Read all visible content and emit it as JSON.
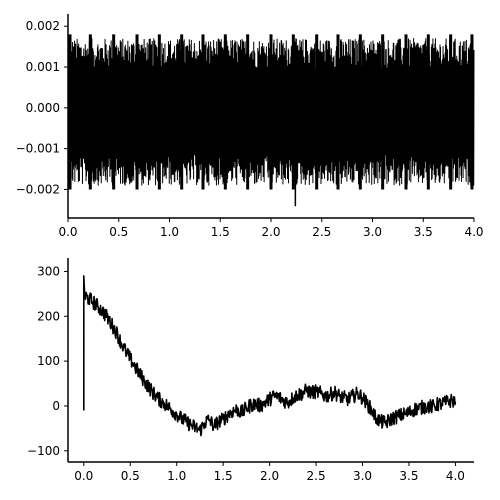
{
  "colors": {
    "line": "#000000",
    "background": "#ffffff"
  },
  "chart_data": [
    {
      "type": "line",
      "title": "",
      "xlabel": "",
      "ylabel": "",
      "xlim": [
        0.0,
        4.0
      ],
      "ylim": [
        -0.0027,
        0.0023
      ],
      "grid": false,
      "x_ticks": [
        0.0,
        0.5,
        1.0,
        1.5,
        2.0,
        2.5,
        3.0,
        3.5,
        4.0
      ],
      "x_tick_labels": [
        "0.0",
        "0.5",
        "1.0",
        "1.5",
        "2.0",
        "2.5",
        "3.0",
        "3.5",
        "4.0"
      ],
      "y_ticks": [
        -0.002,
        -0.001,
        0.0,
        0.001,
        0.002
      ],
      "y_tick_labels": [
        "−0.002",
        "−0.001",
        "0.000",
        "0.001",
        "0.002"
      ],
      "signal": {
        "description": "dense oscillating trace between approx -0.002 and 0.0018 with periodic bursts",
        "burst_times": [
          0.02,
          0.22,
          0.45,
          0.68,
          0.9,
          1.12,
          1.33,
          1.55,
          1.77,
          2.0,
          2.22,
          2.45,
          2.66,
          2.88,
          3.1,
          3.33,
          3.55,
          3.77,
          3.98
        ],
        "upper_envelope": 0.0017,
        "lower_envelope": -0.0019,
        "minimum": {
          "x": 2.24,
          "y": -0.0024
        }
      }
    },
    {
      "type": "line",
      "title": "",
      "xlabel": "",
      "ylabel": "",
      "xlim": [
        -0.17,
        4.2
      ],
      "ylim": [
        -125,
        330
      ],
      "grid": false,
      "x_ticks": [
        0.0,
        0.5,
        1.0,
        1.5,
        2.0,
        2.5,
        3.0,
        3.5,
        4.0
      ],
      "x_tick_labels": [
        "0.0",
        "0.5",
        "1.0",
        "1.5",
        "2.0",
        "2.5",
        "3.0",
        "3.5",
        "4.0"
      ],
      "y_ticks": [
        -100,
        0,
        100,
        200,
        300
      ],
      "y_tick_labels": [
        "−100",
        "0",
        "100",
        "200",
        "300"
      ],
      "series": [
        {
          "x": [
            0.0,
            0.0,
            0.01,
            0.05,
            0.1,
            0.15,
            0.2,
            0.25,
            0.3,
            0.35,
            0.4,
            0.45,
            0.5,
            0.55,
            0.6,
            0.65,
            0.7,
            0.75,
            0.8,
            0.85,
            0.9,
            0.95,
            1.0,
            1.05,
            1.1,
            1.15,
            1.2,
            1.25,
            1.3,
            1.35,
            1.4,
            1.45,
            1.5,
            1.55,
            1.6,
            1.65,
            1.7,
            1.75,
            1.8,
            1.85,
            1.9,
            1.95,
            2.0,
            2.05,
            2.1,
            2.15,
            2.2,
            2.25,
            2.3,
            2.35,
            2.4,
            2.45,
            2.5,
            2.55,
            2.6,
            2.65,
            2.7,
            2.75,
            2.8,
            2.85,
            2.9,
            2.95,
            3.0,
            3.05,
            3.1,
            3.15,
            3.2,
            3.25,
            3.3,
            3.35,
            3.4,
            3.45,
            3.5,
            3.55,
            3.6,
            3.65,
            3.7,
            3.75,
            3.8,
            3.85,
            3.9,
            3.95,
            4.0
          ],
          "values": [
            -10,
            290,
            245,
            240,
            232,
            222,
            212,
            198,
            182,
            165,
            142,
            122,
            105,
            88,
            72,
            56,
            42,
            28,
            17,
            8,
            0,
            -10,
            -18,
            -28,
            -35,
            -42,
            -48,
            -55,
            -38,
            -30,
            -45,
            -35,
            -30,
            -20,
            -12,
            -8,
            -15,
            -5,
            2,
            5,
            0,
            8,
            15,
            22,
            20,
            12,
            8,
            18,
            25,
            28,
            35,
            30,
            32,
            28,
            22,
            25,
            30,
            22,
            18,
            15,
            22,
            28,
            18,
            5,
            -10,
            -28,
            -35,
            -38,
            -30,
            -25,
            -22,
            -18,
            -15,
            -8,
            -5,
            -3,
            0,
            -2,
            3,
            5,
            8,
            12,
            10
          ]
        }
      ]
    }
  ]
}
